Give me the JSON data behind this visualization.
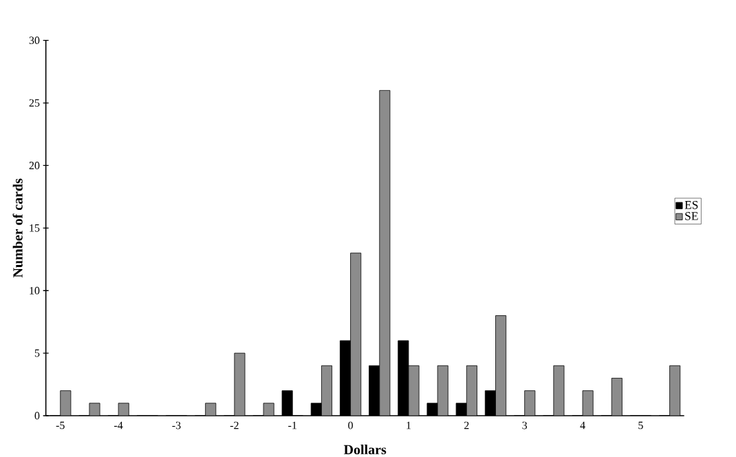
{
  "chart_data": {
    "type": "bar",
    "xlabel": "Dollars",
    "ylabel": "Number of cards",
    "categories": [
      "-5",
      null,
      "-4",
      null,
      "-3",
      null,
      "-2",
      null,
      "-1",
      null,
      "0",
      null,
      "1",
      null,
      "2",
      null,
      "3",
      null,
      "4",
      null,
      "5",
      null
    ],
    "series": [
      {
        "name": "ES",
        "color": "#000000",
        "values": [
          0,
          0,
          0,
          0,
          0,
          0,
          0,
          0,
          2,
          1,
          6,
          4,
          6,
          1,
          1,
          2,
          0,
          0,
          0,
          0,
          0,
          0
        ]
      },
      {
        "name": "SE",
        "color": "#8c8c8c",
        "values": [
          2,
          1,
          1,
          0,
          0,
          1,
          5,
          1,
          0,
          4,
          13,
          26,
          4,
          4,
          4,
          8,
          2,
          4,
          2,
          3,
          0,
          4
        ]
      }
    ],
    "ylim": [
      0,
      30
    ],
    "yticks": [
      0,
      5,
      10,
      15,
      20,
      25,
      30
    ],
    "legend": "right"
  }
}
